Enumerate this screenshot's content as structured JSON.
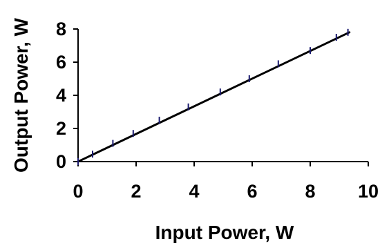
{
  "chart_data": {
    "type": "line",
    "title": "",
    "xlabel": "Input Power, W",
    "ylabel": "Output Power, W",
    "xlim": [
      0,
      10
    ],
    "ylim": [
      0,
      8
    ],
    "xticks": [
      0,
      2,
      4,
      6,
      8,
      10
    ],
    "yticks": [
      0,
      2,
      4,
      6,
      8
    ],
    "xtick_labels": [
      "0",
      "2",
      "4",
      "6",
      "8",
      "10"
    ],
    "ytick_labels": [
      "0",
      "2",
      "4",
      "6",
      "8"
    ],
    "grid": false,
    "legend": "none",
    "series": [
      {
        "color": "#1a1a6e",
        "marker": "vertical-dash",
        "x": [
          0.0,
          0.5,
          1.2,
          1.9,
          2.8,
          3.8,
          4.9,
          5.9,
          6.9,
          8.0,
          8.9,
          9.3
        ],
        "y": [
          0.0,
          0.45,
          1.1,
          1.7,
          2.5,
          3.3,
          4.2,
          5.0,
          5.9,
          6.7,
          7.5,
          7.8
        ]
      }
    ],
    "fit_line": {
      "color": "#000000",
      "x": [
        0.0,
        9.35
      ],
      "y": [
        0.0,
        7.8
      ]
    }
  }
}
